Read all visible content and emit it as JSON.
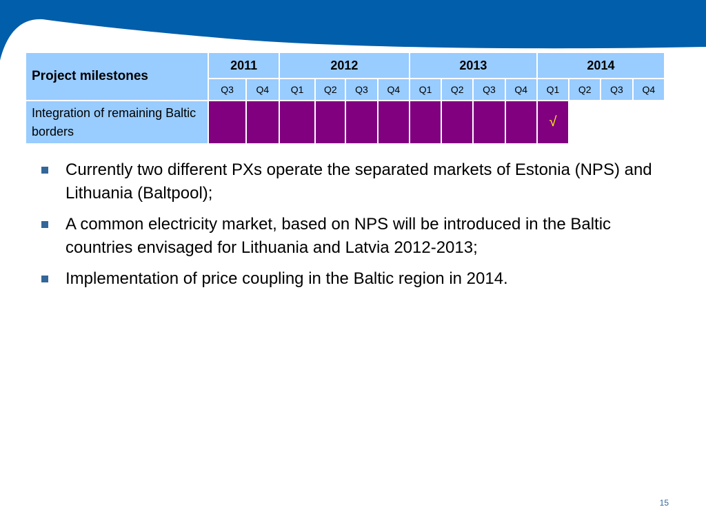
{
  "table": {
    "header_label": "Project milestones",
    "years": [
      {
        "label": "2011",
        "span": 2
      },
      {
        "label": "2012",
        "span": 4
      },
      {
        "label": "2013",
        "span": 4
      },
      {
        "label": "2014",
        "span": 4
      }
    ],
    "quarters": [
      "Q3",
      "Q4",
      "Q1",
      "Q2",
      "Q3",
      "Q4",
      "Q1",
      "Q2",
      "Q3",
      "Q4",
      "Q1",
      "Q2",
      "Q3",
      "Q4"
    ],
    "rows": [
      {
        "label": "Integration of remaining Baltic borders",
        "cells": [
          "active",
          "active",
          "active",
          "active",
          "active",
          "active",
          "active",
          "active",
          "active",
          "active",
          "check",
          "empty",
          "empty",
          "empty"
        ],
        "check_symbol": "√"
      }
    ]
  },
  "bullets": [
    "Currently two different PXs operate the separated markets of Estonia (NPS) and Lithuania (Baltpool);",
    "A common electricity market, based on NPS will be introduced in the Baltic countries envisaged for Lithuania and Latvia 2012-2013;",
    "Implementation of price coupling in the Baltic region in 2014."
  ],
  "page_number": "15",
  "colors": {
    "banner": "#005eaa",
    "header_fill": "#99ccff",
    "active_fill": "#800080",
    "check": "#ffff00",
    "bullet": "#336699"
  }
}
